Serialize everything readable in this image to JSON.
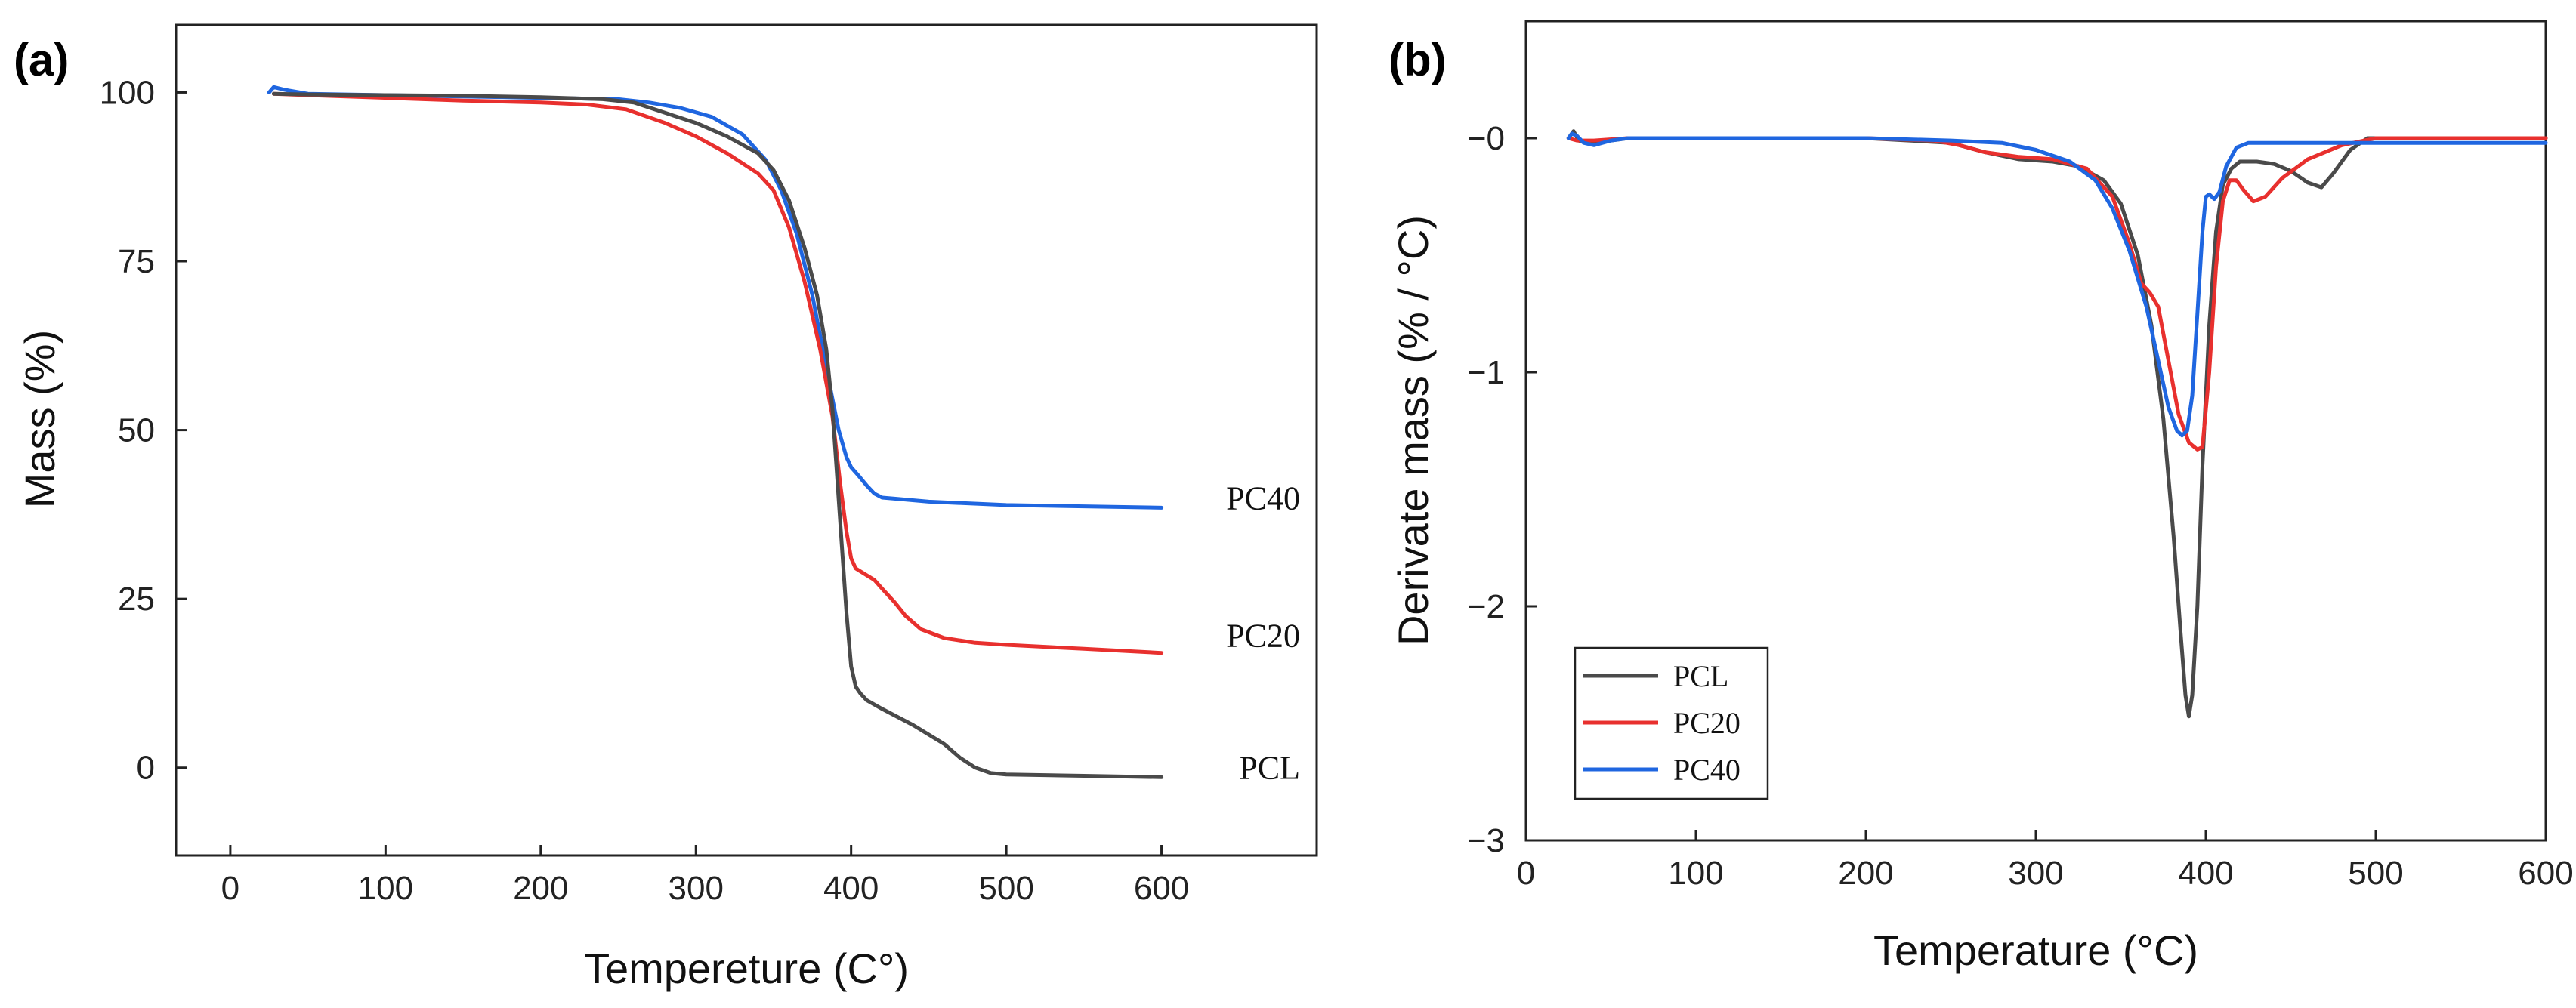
{
  "chart_data": [
    {
      "panel": "(a)",
      "type": "line",
      "xlabel": "Tempereture (C°)",
      "ylabel": "Mass (%)",
      "xlim": [
        -35,
        700
      ],
      "ylim": [
        -13,
        110
      ],
      "xticks": [
        0,
        100,
        200,
        300,
        400,
        500,
        600
      ],
      "yticks": [
        0,
        25,
        50,
        75,
        100
      ],
      "legend": "none",
      "series": [
        {
          "name": "PC40",
          "color": "#1f66e0",
          "x": [
            25,
            28,
            35,
            50,
            100,
            150,
            200,
            250,
            270,
            290,
            310,
            330,
            345,
            355,
            365,
            375,
            385,
            392,
            397,
            400,
            405,
            410,
            415,
            420,
            430,
            450,
            500,
            550,
            600
          ],
          "y": [
            100,
            100.8,
            100.4,
            99.8,
            99.6,
            99.4,
            99.2,
            99,
            98.5,
            97.7,
            96.4,
            93.8,
            90,
            85.5,
            79,
            70,
            58,
            50,
            46,
            44.5,
            43.2,
            41.8,
            40.6,
            40,
            39.8,
            39.4,
            38.9,
            38.7,
            38.5
          ]
        },
        {
          "name": "PC20",
          "color": "#e8302e",
          "x": [
            28,
            50,
            100,
            150,
            200,
            230,
            255,
            280,
            300,
            320,
            340,
            350,
            360,
            370,
            380,
            388,
            393,
            397,
            400,
            403,
            408,
            415,
            420,
            428,
            435,
            445,
            460,
            480,
            500,
            550,
            600
          ],
          "y": [
            99.8,
            99.6,
            99.2,
            98.8,
            98.5,
            98.2,
            97.5,
            95.5,
            93.5,
            91,
            88,
            85.5,
            80,
            72,
            62,
            52,
            42,
            35,
            31,
            29.5,
            28.8,
            27.8,
            26.5,
            24.5,
            22.5,
            20.5,
            19.2,
            18.5,
            18.2,
            17.6,
            17
          ]
        },
        {
          "name": "PCL",
          "color": "#4a4a4a",
          "x": [
            28,
            50,
            100,
            150,
            200,
            240,
            260,
            280,
            300,
            320,
            340,
            350,
            360,
            370,
            378,
            384,
            388,
            391,
            394,
            397,
            400,
            403,
            406,
            410,
            420,
            440,
            460,
            470,
            480,
            490,
            500,
            550,
            600
          ],
          "y": [
            99.8,
            99.7,
            99.6,
            99.5,
            99.3,
            99,
            98.5,
            97,
            95.5,
            93.5,
            91,
            88.5,
            84,
            77,
            70,
            62,
            53,
            43,
            33,
            23,
            15,
            12,
            11,
            10,
            8.7,
            6.3,
            3.5,
            1.5,
            0,
            -0.8,
            -1,
            -1.2,
            -1.4
          ]
        }
      ],
      "end_labels": [
        {
          "text": "PC40",
          "series": "PC40"
        },
        {
          "text": "PC20",
          "series": "PC20"
        },
        {
          "text": "PCL",
          "series": "PCL"
        }
      ]
    },
    {
      "panel": "(b)",
      "type": "line",
      "xlabel": "Temperature (°C)",
      "ylabel": "Derivate mass (% / °C)",
      "xlim": [
        0,
        600
      ],
      "ylim": [
        -3,
        0.5
      ],
      "xticks": [
        0,
        100,
        200,
        300,
        400,
        500,
        600
      ],
      "yticks": [
        -3,
        -2,
        -1,
        0
      ],
      "ytick_labels": [
        "−3",
        "−2",
        "−1",
        "−0"
      ],
      "legend": "bottom-left",
      "series": [
        {
          "name": "PCL",
          "color": "#4a4a4a",
          "x": [
            25,
            28,
            31,
            35,
            40,
            50,
            60,
            100,
            150,
            200,
            250,
            270,
            290,
            310,
            325,
            340,
            350,
            360,
            368,
            375,
            381,
            385,
            388,
            390,
            392,
            395,
            398,
            402,
            406,
            410,
            415,
            420,
            430,
            440,
            450,
            460,
            468,
            475,
            485,
            495,
            550,
            600
          ],
          "y": [
            0,
            0.03,
            -0.01,
            -0.02,
            -0.02,
            -0.01,
            0,
            0,
            0,
            0,
            -0.02,
            -0.06,
            -0.09,
            -0.1,
            -0.12,
            -0.18,
            -0.28,
            -0.5,
            -0.8,
            -1.2,
            -1.7,
            -2.1,
            -2.38,
            -2.47,
            -2.38,
            -2.0,
            -1.4,
            -0.8,
            -0.4,
            -0.2,
            -0.13,
            -0.1,
            -0.1,
            -0.11,
            -0.14,
            -0.19,
            -0.21,
            -0.15,
            -0.05,
            0,
            0,
            0
          ]
        },
        {
          "name": "PC20",
          "color": "#e8302e",
          "x": [
            25,
            30,
            40,
            60,
            100,
            150,
            200,
            240,
            255,
            270,
            290,
            310,
            330,
            345,
            355,
            362,
            367,
            372,
            378,
            384,
            390,
            395,
            398,
            402,
            406,
            410,
            414,
            418,
            422,
            428,
            435,
            445,
            460,
            480,
            500,
            550,
            600
          ],
          "y": [
            0,
            -0.01,
            -0.01,
            0,
            0,
            0,
            0,
            -0.01,
            -0.03,
            -0.06,
            -0.08,
            -0.09,
            -0.13,
            -0.25,
            -0.45,
            -0.62,
            -0.66,
            -0.72,
            -0.95,
            -1.18,
            -1.3,
            -1.33,
            -1.32,
            -1.0,
            -0.55,
            -0.27,
            -0.18,
            -0.18,
            -0.22,
            -0.27,
            -0.25,
            -0.17,
            -0.09,
            -0.03,
            0,
            0,
            0
          ]
        },
        {
          "name": "PC40",
          "color": "#1f66e0",
          "x": [
            25,
            27,
            30,
            34,
            40,
            50,
            60,
            100,
            150,
            200,
            250,
            280,
            300,
            320,
            335,
            345,
            355,
            365,
            372,
            378,
            383,
            386,
            389,
            392,
            395,
            398,
            400,
            402,
            405,
            408,
            412,
            418,
            425,
            435,
            450,
            500,
            550,
            600
          ],
          "y": [
            0,
            0.02,
            0.01,
            -0.02,
            -0.03,
            -0.01,
            0,
            0,
            0,
            0,
            -0.01,
            -0.02,
            -0.05,
            -0.1,
            -0.18,
            -0.3,
            -0.48,
            -0.72,
            -0.95,
            -1.15,
            -1.25,
            -1.27,
            -1.25,
            -1.1,
            -0.75,
            -0.4,
            -0.25,
            -0.24,
            -0.26,
            -0.23,
            -0.12,
            -0.04,
            -0.02,
            -0.02,
            -0.02,
            -0.02,
            -0.02,
            -0.02
          ]
        }
      ]
    }
  ]
}
